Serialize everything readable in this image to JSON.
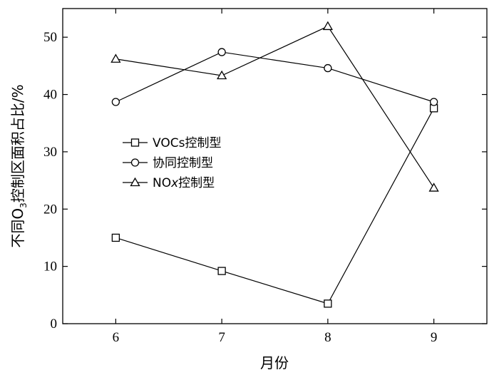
{
  "chart_data": {
    "type": "line",
    "x": [
      6,
      7,
      8,
      9
    ],
    "xlabel": "月份",
    "ylabel": "不同O3控制区面积占比/%",
    "ylabel_parts": {
      "before": "不同O",
      "sub": "3",
      "after": "控制区面积占比/%"
    },
    "xlim": [
      5.5,
      9.5
    ],
    "ylim": [
      0,
      55
    ],
    "xticks": [
      6,
      7,
      8,
      9
    ],
    "yticks": [
      0,
      10,
      20,
      30,
      40,
      50
    ],
    "grid": false,
    "legend_position": "center-left",
    "series": [
      {
        "name": "VOCs控制型",
        "marker": "square",
        "values": [
          15,
          9.2,
          3.5,
          37.6
        ]
      },
      {
        "name": "协同控制型",
        "marker": "circle",
        "values": [
          38.7,
          47.4,
          44.6,
          38.7
        ]
      },
      {
        "name": "NOx控制型",
        "name_parts": {
          "base": "NO",
          "italic": "x",
          "after": "控制型"
        },
        "marker": "triangle",
        "values": [
          46.2,
          43.3,
          51.9,
          23.7
        ]
      }
    ],
    "colors": {
      "line": "#000000",
      "background": "#ffffff"
    }
  }
}
